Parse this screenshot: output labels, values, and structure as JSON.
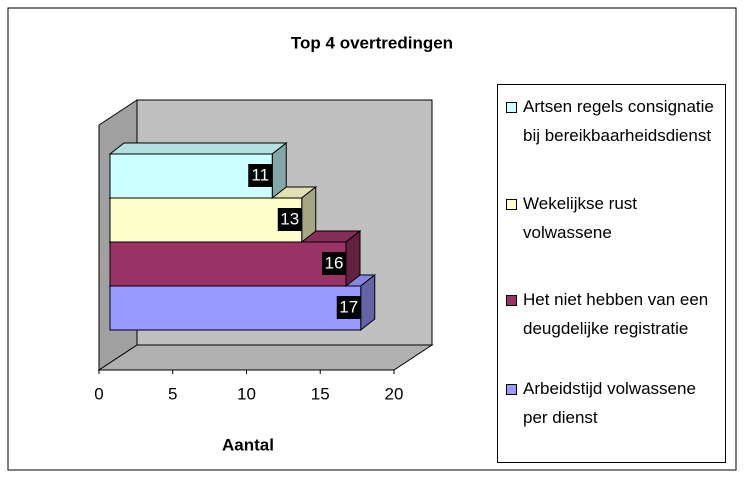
{
  "chart_data": {
    "type": "bar",
    "orientation": "horizontal",
    "title": "Top 4 overtredingen",
    "xlabel": "Aantal",
    "series": [
      {
        "name": "Artsen regels consignatie bij bereikbaarheidsdienst",
        "color": "#ccffff",
        "values": [
          11
        ]
      },
      {
        "name": "Wekelijkse rust volwassene",
        "color": "#ffffcc",
        "values": [
          13
        ]
      },
      {
        "name": "Het niet hebben van een deugdelijke registratie",
        "color": "#993366",
        "values": [
          16
        ]
      },
      {
        "name": "Arbeidstijd volwassene per dienst",
        "color": "#9999ff",
        "values": [
          17
        ]
      }
    ],
    "xlim": [
      0,
      20
    ],
    "xticks": [
      0,
      5,
      10,
      15,
      20
    ],
    "legend": "right"
  }
}
